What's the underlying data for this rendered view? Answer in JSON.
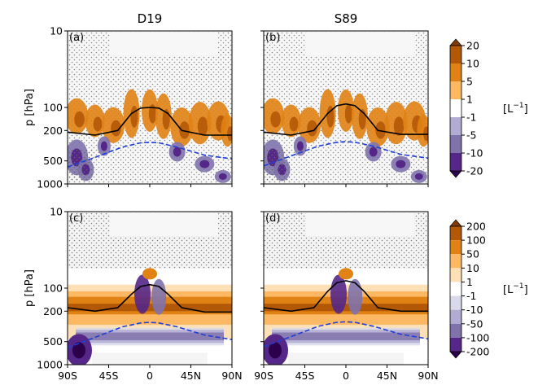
{
  "figure": {
    "ylabel": "p [hPa]",
    "unit_label_top": "[L",
    "unit_label_bottom": "[L",
    "unit_sup": "−1",
    "unit_close": "]"
  },
  "chart_data": [
    {
      "type": "heatmap",
      "panel": "(a)",
      "title": "D19",
      "x_ticks": [
        "90S",
        "45S",
        "0",
        "45N",
        "90N"
      ],
      "xlim": [
        -90,
        90
      ],
      "y_ticks": [
        "10",
        "100",
        "200",
        "500",
        "1000"
      ],
      "ylim": [
        1000,
        10
      ],
      "yscale": "log",
      "lines": [
        {
          "style": "solid",
          "color": "#000000",
          "x": [
            -90,
            -60,
            -35,
            -20,
            -10,
            0,
            10,
            20,
            35,
            60,
            90
          ],
          "y": [
            210,
            230,
            200,
            120,
            102,
            100,
            102,
            120,
            200,
            230,
            230
          ]
        },
        {
          "style": "dashed",
          "color": "#1f3fd6",
          "x": [
            -90,
            -60,
            -30,
            -10,
            0,
            10,
            30,
            60,
            90
          ],
          "y": [
            600,
            450,
            330,
            290,
            285,
            290,
            330,
            420,
            470
          ]
        }
      ]
    },
    {
      "type": "heatmap",
      "panel": "(b)",
      "title": "S89",
      "x_ticks": [
        "90S",
        "45S",
        "0",
        "45N",
        "90N"
      ],
      "xlim": [
        -90,
        90
      ],
      "y_ticks": [
        "10",
        "100",
        "200",
        "500",
        "1000"
      ],
      "ylim": [
        1000,
        10
      ],
      "yscale": "log",
      "lines": [
        {
          "style": "solid",
          "color": "#000000",
          "x": [
            -90,
            -60,
            -35,
            -20,
            -10,
            0,
            10,
            20,
            35,
            60,
            90
          ],
          "y": [
            210,
            230,
            200,
            120,
            95,
            90,
            95,
            120,
            200,
            225,
            225
          ]
        },
        {
          "style": "dashed",
          "color": "#1f3fd6",
          "x": [
            -90,
            -60,
            -30,
            -10,
            0,
            10,
            30,
            60,
            90
          ],
          "y": [
            580,
            430,
            320,
            285,
            280,
            285,
            320,
            410,
            460
          ]
        }
      ]
    },
    {
      "type": "heatmap",
      "panel": "(c)",
      "title": "",
      "x_ticks": [
        "90S",
        "45S",
        "0",
        "45N",
        "90N"
      ],
      "xlim": [
        -90,
        90
      ],
      "y_ticks": [
        "10",
        "100",
        "200",
        "500",
        "1000"
      ],
      "ylim": [
        1000,
        10
      ],
      "yscale": "log",
      "lines": [
        {
          "style": "solid",
          "color": "#000000",
          "x": [
            -90,
            -60,
            -35,
            -20,
            -10,
            0,
            10,
            20,
            35,
            60,
            90
          ],
          "y": [
            180,
            200,
            180,
            120,
            95,
            90,
            95,
            120,
            180,
            205,
            205
          ]
        },
        {
          "style": "dashed",
          "color": "#1f3fd6",
          "x": [
            -90,
            -60,
            -30,
            -10,
            0,
            10,
            30,
            60,
            90
          ],
          "y": [
            600,
            440,
            320,
            285,
            280,
            285,
            320,
            410,
            470
          ]
        }
      ]
    },
    {
      "type": "heatmap",
      "panel": "(d)",
      "title": "",
      "x_ticks": [
        "90S",
        "45S",
        "0",
        "45N",
        "90N"
      ],
      "xlim": [
        -90,
        90
      ],
      "y_ticks": [
        "10",
        "100",
        "200",
        "500",
        "1000"
      ],
      "ylim": [
        1000,
        10
      ],
      "yscale": "log",
      "lines": [
        {
          "style": "solid",
          "color": "#000000",
          "x": [
            -90,
            -60,
            -35,
            -20,
            -10,
            0,
            10,
            20,
            35,
            60,
            90
          ],
          "y": [
            180,
            200,
            180,
            110,
            85,
            80,
            85,
            110,
            180,
            200,
            200
          ]
        },
        {
          "style": "dashed",
          "color": "#1f3fd6",
          "x": [
            -90,
            -60,
            -30,
            -10,
            0,
            10,
            30,
            60,
            90
          ],
          "y": [
            580,
            430,
            315,
            280,
            275,
            280,
            315,
            400,
            460
          ]
        }
      ]
    }
  ],
  "colorbars": [
    {
      "levels": [
        "20",
        "10",
        "5",
        "1",
        "-1",
        "-5",
        "-10",
        "-20"
      ],
      "colors": [
        "#7f3b08",
        "#b35806",
        "#e08214",
        "#fdb863",
        "#ffffff",
        "#b2abd2",
        "#8073ac",
        "#542788",
        "#2d004b"
      ]
    },
    {
      "levels": [
        "200",
        "100",
        "50",
        "10",
        "1",
        "-1",
        "-10",
        "-50",
        "-100",
        "-200"
      ],
      "colors": [
        "#7f3b08",
        "#b35806",
        "#e08214",
        "#fdb863",
        "#fee0b6",
        "#ffffff",
        "#d8daeb",
        "#b2abd2",
        "#8073ac",
        "#542788",
        "#2d004b"
      ]
    }
  ]
}
